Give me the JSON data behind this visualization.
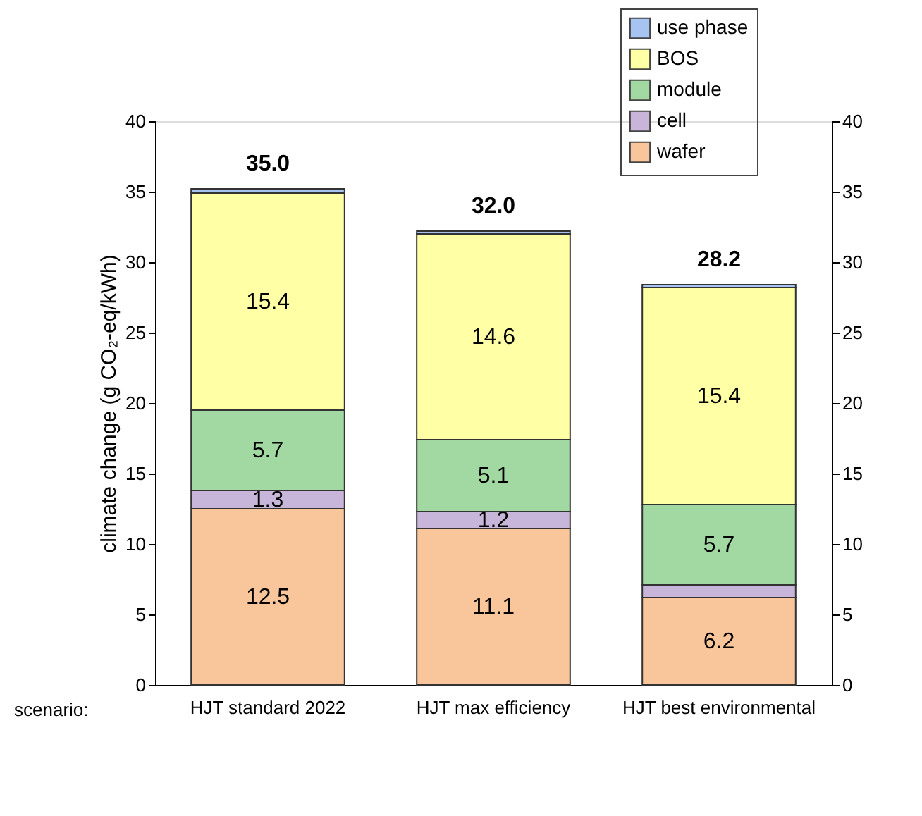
{
  "chart_data": {
    "type": "bar",
    "stacked": true,
    "ylabel": "climate change (g CO₂-eq/kWh)",
    "categories": [
      "HJT standard 2022",
      "HJT max efficiency",
      "HJT best environmental"
    ],
    "series": [
      {
        "name": "wafer",
        "color": "#f9c69b",
        "values": [
          12.5,
          11.1,
          6.2
        ],
        "value_labels": [
          "12.5",
          "11.1",
          "6.2"
        ]
      },
      {
        "name": "cell",
        "color": "#c8b6da",
        "values": [
          1.3,
          1.2,
          0.9
        ],
        "value_labels": [
          "1.3",
          "1.2",
          null
        ]
      },
      {
        "name": "module",
        "color": "#a2d9a2",
        "values": [
          5.7,
          5.1,
          5.7
        ],
        "value_labels": [
          "5.7",
          "5.1",
          "5.7"
        ]
      },
      {
        "name": "BOS",
        "color": "#ffffa6",
        "values": [
          15.4,
          14.6,
          15.4
        ],
        "value_labels": [
          "15.4",
          "14.6",
          "15.4"
        ]
      },
      {
        "name": "use phase",
        "color": "#a6c3f2",
        "values": [
          0.3,
          0.2,
          0.2
        ],
        "value_labels": [
          null,
          null,
          null
        ]
      }
    ],
    "totals": [
      "35.0",
      "32.0",
      "28.2"
    ],
    "ylim": [
      0,
      40
    ],
    "yticks": [
      0,
      5,
      10,
      15,
      20,
      25,
      30,
      35,
      40
    ],
    "y2lim": [
      0,
      40
    ],
    "y2ticks": [
      0,
      5,
      10,
      15,
      20,
      25,
      30,
      35,
      40
    ],
    "grid": false,
    "legend": "top right",
    "annotations": [
      "scenario:"
    ]
  }
}
